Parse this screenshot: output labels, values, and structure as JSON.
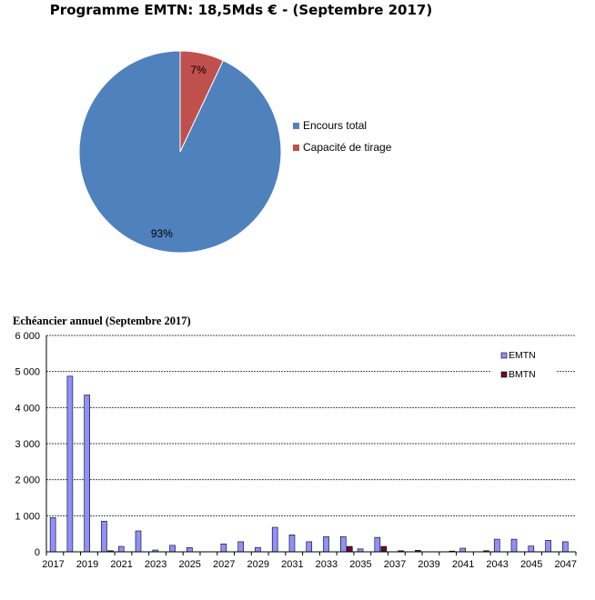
{
  "chart_data": [
    {
      "type": "pie",
      "title": "Programme EMTN: 18,5Mds € - (Septembre 2017)",
      "slices": [
        {
          "name": "Encours total",
          "value": 93,
          "label": "93%",
          "color": "#4f81bd"
        },
        {
          "name": "Capacité de tirage",
          "value": 7,
          "label": "7%",
          "color": "#c0504d"
        }
      ],
      "legend_position": "right"
    },
    {
      "type": "bar",
      "title": "Echéancier annuel (Septembre 2017)",
      "categories": [
        2017,
        2018,
        2019,
        2020,
        2021,
        2022,
        2023,
        2024,
        2025,
        2026,
        2027,
        2028,
        2029,
        2030,
        2031,
        2032,
        2033,
        2034,
        2035,
        2036,
        2037,
        2038,
        2039,
        2040,
        2041,
        2042,
        2043,
        2044,
        2045,
        2046,
        2047
      ],
      "tick_labels": [
        "2017",
        "2019",
        "2021",
        "2023",
        "2025",
        "2027",
        "2029",
        "2031",
        "2033",
        "2035",
        "2037",
        "2039",
        "2041",
        "2043",
        "2045",
        "2047"
      ],
      "y_tick_labels": [
        "0",
        "1 000",
        "2 000",
        "3 000",
        "4 000",
        "5 000",
        "6 000"
      ],
      "ylim": [
        0,
        6000
      ],
      "grid": true,
      "legend_position": "top-right",
      "series": [
        {
          "name": "EMTN",
          "color": "#8f8fff",
          "values": [
            950,
            4870,
            4350,
            850,
            150,
            580,
            50,
            180,
            120,
            0,
            220,
            280,
            120,
            680,
            470,
            280,
            420,
            420,
            80,
            400,
            0,
            0,
            0,
            0,
            100,
            0,
            350,
            350,
            160,
            320,
            280
          ]
        },
        {
          "name": "BMTN",
          "color": "#6a0a3a",
          "values": [
            0,
            0,
            0,
            30,
            0,
            0,
            0,
            0,
            0,
            0,
            0,
            0,
            0,
            0,
            0,
            0,
            0,
            150,
            0,
            150,
            30,
            40,
            0,
            20,
            0,
            30,
            0,
            0,
            0,
            0,
            0
          ]
        }
      ]
    }
  ]
}
